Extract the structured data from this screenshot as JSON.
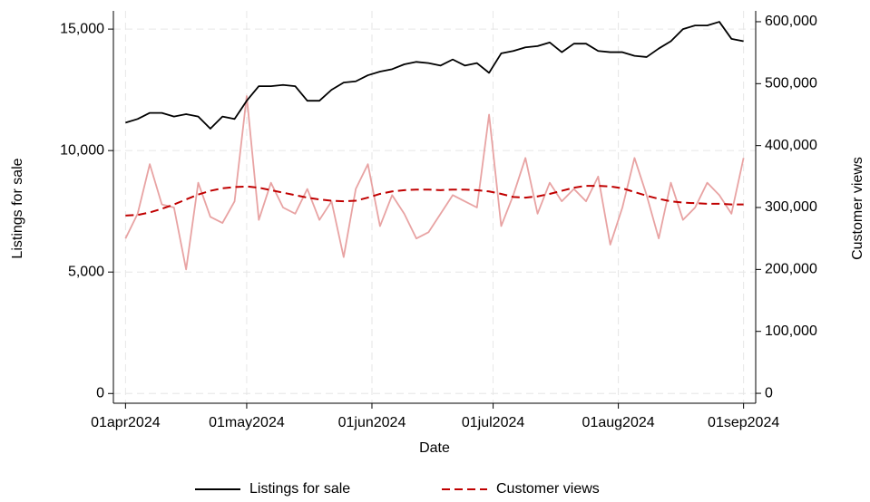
{
  "chart_data": {
    "type": "line",
    "x_label": "Date",
    "y_label": "Listings for sale",
    "y2_label": "Customer views",
    "x": [
      "2024-04-01",
      "2024-04-04",
      "2024-04-07",
      "2024-04-10",
      "2024-04-13",
      "2024-04-16",
      "2024-04-19",
      "2024-04-22",
      "2024-04-25",
      "2024-04-28",
      "2024-05-01",
      "2024-05-04",
      "2024-05-07",
      "2024-05-10",
      "2024-05-13",
      "2024-05-16",
      "2024-05-19",
      "2024-05-22",
      "2024-05-25",
      "2024-05-28",
      "2024-05-31",
      "2024-06-03",
      "2024-06-06",
      "2024-06-09",
      "2024-06-12",
      "2024-06-15",
      "2024-06-18",
      "2024-06-21",
      "2024-06-24",
      "2024-06-27",
      "2024-06-30",
      "2024-07-03",
      "2024-07-06",
      "2024-07-09",
      "2024-07-12",
      "2024-07-15",
      "2024-07-18",
      "2024-07-21",
      "2024-07-24",
      "2024-07-27",
      "2024-07-30",
      "2024-08-02",
      "2024-08-05",
      "2024-08-08",
      "2024-08-11",
      "2024-08-14",
      "2024-08-17",
      "2024-08-20",
      "2024-08-23",
      "2024-08-26",
      "2024-08-29",
      "2024-09-01"
    ],
    "series": [
      {
        "color": "#e8a3a3",
        "axis": "y2",
        "dashed": false,
        "values": [
          250000,
          290000,
          370000,
          305000,
          300000,
          200000,
          340000,
          285000,
          275000,
          310000,
          480000,
          280000,
          340000,
          300000,
          290000,
          330000,
          280000,
          310000,
          220000,
          330000,
          370000,
          270000,
          320000,
          290000,
          250000,
          260000,
          290000,
          320000,
          310000,
          300000,
          450000,
          270000,
          320000,
          380000,
          290000,
          340000,
          310000,
          330000,
          310000,
          350000,
          240000,
          300000,
          380000,
          320000,
          250000,
          340000,
          280000,
          300000,
          340000,
          320000,
          290000,
          380000
        ]
      },
      {
        "name": "Listings for sale",
        "color": "#000000",
        "axis": "y",
        "dashed": false,
        "values": [
          11150,
          11300,
          11550,
          11550,
          11400,
          11500,
          11400,
          10900,
          11400,
          11300,
          12050,
          12650,
          12650,
          12700,
          12650,
          12050,
          12050,
          12500,
          12800,
          12850,
          13100,
          13250,
          13350,
          13550,
          13650,
          13600,
          13500,
          13750,
          13500,
          13600,
          13200,
          14000,
          14100,
          14250,
          14300,
          14450,
          14050,
          14400,
          14400,
          14100,
          14050,
          14050,
          13900,
          13850,
          14200,
          14500,
          15000,
          15150,
          15150,
          15300,
          14600,
          14500
        ]
      },
      {
        "name": "Customer views",
        "color": "#c00000",
        "axis": "y2",
        "dashed": true,
        "values": [
          287000,
          288000,
          292000,
          298000,
          305000,
          313000,
          321000,
          327000,
          331000,
          333000,
          334000,
          332000,
          328000,
          324000,
          320000,
          316000,
          313000,
          311000,
          310000,
          311000,
          316000,
          322000,
          326000,
          328000,
          329000,
          329000,
          328000,
          329000,
          329000,
          328000,
          326000,
          322000,
          317000,
          316000,
          318000,
          322000,
          327000,
          332000,
          335000,
          335000,
          334000,
          331000,
          325000,
          319000,
          314000,
          310000,
          308000,
          307000,
          306000,
          306000,
          305000,
          305000
        ]
      }
    ],
    "xlim": [
      "2024-03-29",
      "2024-09-04"
    ],
    "xticks": [
      {
        "value": "2024-04-01",
        "label": "01apr2024"
      },
      {
        "value": "2024-05-01",
        "label": "01may2024"
      },
      {
        "value": "2024-06-01",
        "label": "01jun2024"
      },
      {
        "value": "2024-07-01",
        "label": "01jul2024"
      },
      {
        "value": "2024-08-01",
        "label": "01aug2024"
      },
      {
        "value": "2024-09-01",
        "label": "01sep2024"
      }
    ],
    "ylim": [
      -400,
      15750
    ],
    "yticks": [
      0,
      {
        "value": 5000,
        "label": "5,000"
      },
      {
        "value": 10000,
        "label": "10,000"
      },
      {
        "value": 15000,
        "label": "15,000"
      }
    ],
    "y2lim": [
      -16000,
      617500
    ],
    "y2ticks": [
      0,
      {
        "value": 100000,
        "label": "100,000"
      },
      {
        "value": 200000,
        "label": "200,000"
      },
      {
        "value": 300000,
        "label": "300,000"
      },
      {
        "value": 400000,
        "label": "400,000"
      },
      {
        "value": 500000,
        "label": "500,000"
      },
      {
        "value": 600000,
        "label": "600,000"
      }
    ],
    "grid": true
  }
}
